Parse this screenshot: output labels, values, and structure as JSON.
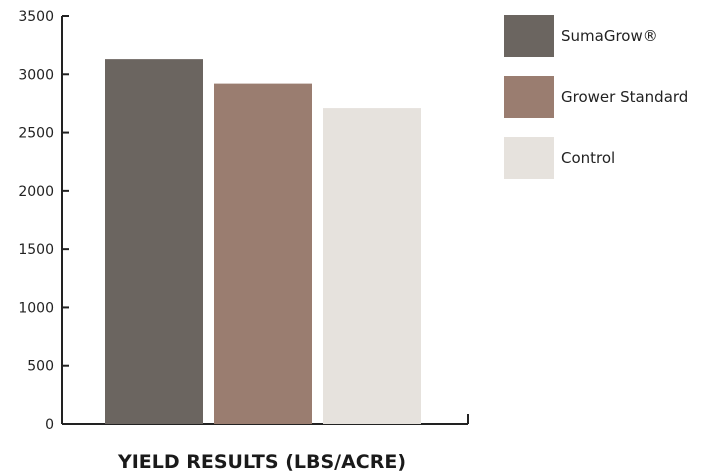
{
  "chart_data": {
    "type": "bar",
    "title": "",
    "xlabel": "YIELD RESULTS (LBS/ACRE)",
    "ylabel": "",
    "ylim": [
      0,
      3500
    ],
    "yticks": [
      0,
      500,
      1000,
      1500,
      2000,
      2500,
      3000,
      3500
    ],
    "grid": false,
    "legend_position": "top-right",
    "series": [
      {
        "name": "SumaGrow®",
        "values": [
          3130
        ],
        "color": "#6b6560"
      },
      {
        "name": "Grower Standard",
        "values": [
          2920
        ],
        "color": "#9a7d70"
      },
      {
        "name": "Control",
        "values": [
          2710
        ],
        "color": "#e6e2dd"
      }
    ]
  }
}
